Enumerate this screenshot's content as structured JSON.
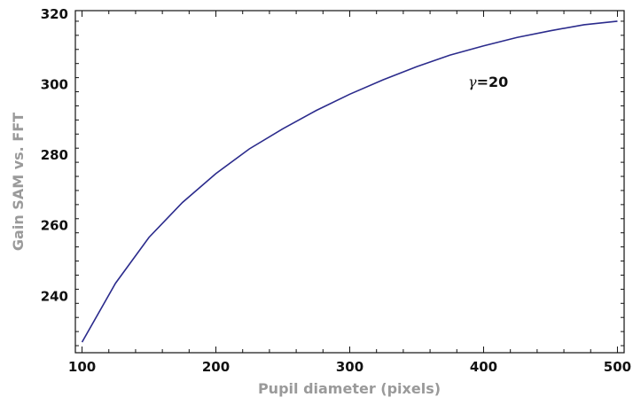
{
  "chart_data": {
    "type": "line",
    "xlabel": "Pupil diameter (pixels)",
    "ylabel": "Gain SAM vs. FFT",
    "xlim": [
      95,
      505
    ],
    "ylim": [
      224,
      321
    ],
    "xticks": [
      100,
      200,
      300,
      400,
      500
    ],
    "yticks": [
      240,
      260,
      280,
      300,
      320
    ],
    "grid": false,
    "annotation": {
      "symbol": "γ",
      "text": "=20"
    },
    "series": [
      {
        "color": "#2b2b8c",
        "x": [
          100,
          125,
          150,
          175,
          200,
          225,
          250,
          275,
          300,
          325,
          350,
          375,
          400,
          425,
          450,
          475,
          500
        ],
        "y": [
          227.0,
          243.7,
          256.7,
          266.6,
          274.8,
          281.8,
          287.5,
          292.7,
          297.3,
          301.4,
          305.1,
          308.4,
          311.0,
          313.4,
          315.3,
          317.0,
          318.0
        ]
      }
    ]
  }
}
